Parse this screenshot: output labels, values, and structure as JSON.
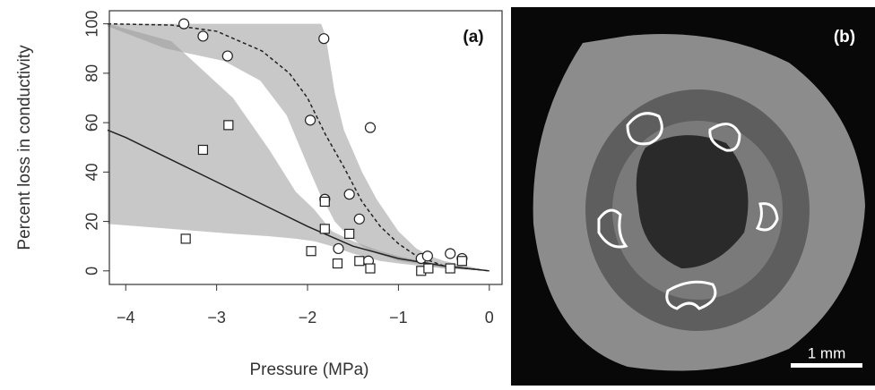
{
  "chart_data": {
    "type": "scatter",
    "panel_label": "(a)",
    "x_label": "Pressure (MPa)",
    "y_label": "Percent loss in conductivity",
    "xlim": [
      -4.18,
      0.14
    ],
    "ylim": [
      -5.5,
      105.3
    ],
    "xticks": [
      {
        "value": -4,
        "label": "−4"
      },
      {
        "value": -3,
        "label": "−3"
      },
      {
        "value": -2,
        "label": "−2"
      },
      {
        "value": -1,
        "label": "−1"
      },
      0
    ],
    "yticks": [
      0,
      20,
      40,
      60,
      80,
      100
    ],
    "bands": [
      {
        "color": "#9a9a9a",
        "x": [
          -4.2,
          -3.56,
          -2.92,
          -2.52,
          -2.23,
          -1.98,
          -1.85,
          -1.8,
          -1.7,
          -1.6,
          -1.4,
          -1.24,
          -1,
          -0.8,
          -0.65,
          -0.5,
          0
        ],
        "upper": [
          100,
          100,
          100,
          100,
          100,
          100,
          100,
          95,
          72,
          57,
          40,
          29,
          16,
          9,
          6,
          4,
          0
        ],
        "lower": [
          99,
          90,
          85,
          77,
          63,
          41,
          30,
          27,
          20,
          16,
          10,
          7,
          4,
          3,
          2,
          1,
          0
        ]
      },
      {
        "color": "#9a9a9a",
        "x": [
          -4.2,
          -3.5,
          -2.82,
          -2.42,
          -2.13,
          -1.93,
          -1.73,
          -1.5,
          -1.2,
          -1,
          -0.5,
          0
        ],
        "upper": [
          100,
          93,
          70,
          49,
          32,
          25,
          16,
          12,
          8,
          6,
          2,
          0
        ],
        "lower": [
          19,
          17,
          15,
          14,
          13,
          12,
          10,
          7,
          4,
          3,
          1,
          0
        ]
      }
    ],
    "lines": [
      {
        "dash": "4 3",
        "color": "#222",
        "x": [
          -4.2,
          -3.5,
          -3,
          -2.5,
          -2.2,
          -2,
          -1.8,
          -1.6,
          -1.4,
          -1.2,
          -1,
          -0.8,
          -0.5,
          0
        ],
        "values": [
          100,
          99.5,
          97,
          89,
          80,
          70,
          55,
          42,
          28,
          18,
          11,
          6,
          2,
          0
        ]
      },
      {
        "dash": "none",
        "color": "#222",
        "x": [
          -4.2,
          -4,
          -3.5,
          -3,
          -2.5,
          -2,
          -1.5,
          -1,
          -0.5,
          0
        ],
        "values": [
          57,
          54,
          45,
          36,
          27,
          18,
          10,
          5,
          2,
          0
        ]
      }
    ],
    "series": [
      {
        "marker": "circle",
        "x": [
          -3.36,
          -3.15,
          -2.88,
          -1.82,
          -1.97,
          -1.31,
          -1.81,
          -1.54,
          -1.43,
          -1.66,
          -1.33,
          -0.75,
          -0.68,
          -0.43,
          -0.3
        ],
        "values": [
          100,
          95,
          87,
          94,
          61,
          58,
          29,
          31,
          21,
          9,
          4,
          5,
          6,
          7,
          5
        ]
      },
      {
        "marker": "square",
        "x": [
          -3.34,
          -3.15,
          -2.87,
          -1.81,
          -1.81,
          -1.54,
          -1.96,
          -1.67,
          -1.43,
          -1.31,
          -0.75,
          -0.67,
          -0.43,
          -0.3
        ],
        "values": [
          13,
          49,
          59,
          28,
          17,
          15,
          8,
          3,
          4,
          1,
          0,
          1,
          1,
          4
        ]
      }
    ]
  },
  "image": {
    "panel_label": "(b)",
    "scale_bar": "1 mm"
  }
}
